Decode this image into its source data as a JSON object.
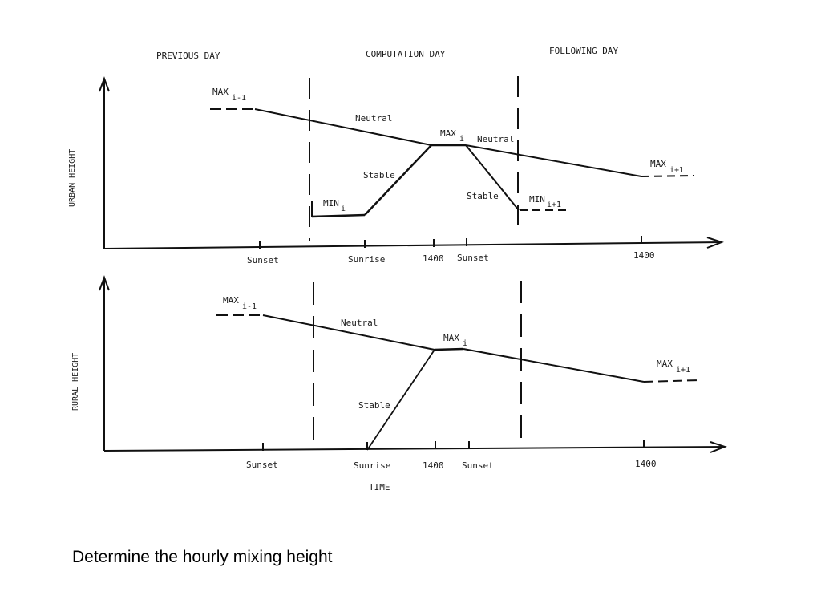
{
  "header": {
    "previous_day": "PREVIOUS DAY",
    "computation_day": "COMPUTATION DAY",
    "following_day": "FOLLOWING DAY"
  },
  "urban_panel": {
    "y_axis_label": "URBAN HEIGHT",
    "ticks": [
      "Sunset",
      "Sunrise",
      "1400",
      "Sunset",
      "1400"
    ],
    "curve_labels": {
      "neutral_left": "Neutral",
      "neutral_right": "Neutral",
      "stable_rise": "Stable",
      "stable_fall": "Stable"
    },
    "level_labels": {
      "max_prev": "MAX",
      "max_prev_sub": "i-1",
      "max_cur": "MAX",
      "max_cur_sub": "i",
      "max_next": "MAX",
      "max_next_sub": "i+1",
      "min_cur": "MIN",
      "min_cur_sub": "i",
      "min_next": "MIN",
      "min_next_sub": "i+1"
    }
  },
  "rural_panel": {
    "y_axis_label": "RURAL HEIGHT",
    "x_axis_label": "TIME",
    "ticks": [
      "Sunset",
      "Sunrise",
      "1400",
      "Sunset",
      "1400"
    ],
    "curve_labels": {
      "neutral": "Neutral",
      "stable": "Stable"
    },
    "level_labels": {
      "max_prev": "MAX",
      "max_prev_sub": "i-1",
      "max_cur": "MAX",
      "max_cur_sub": "i",
      "max_next": "MAX",
      "max_next_sub": "i+1"
    }
  },
  "caption": "Determine the hourly mixing height",
  "colors": {
    "line": "#111111",
    "text": "#1a1a1a",
    "background": "#ffffff"
  }
}
